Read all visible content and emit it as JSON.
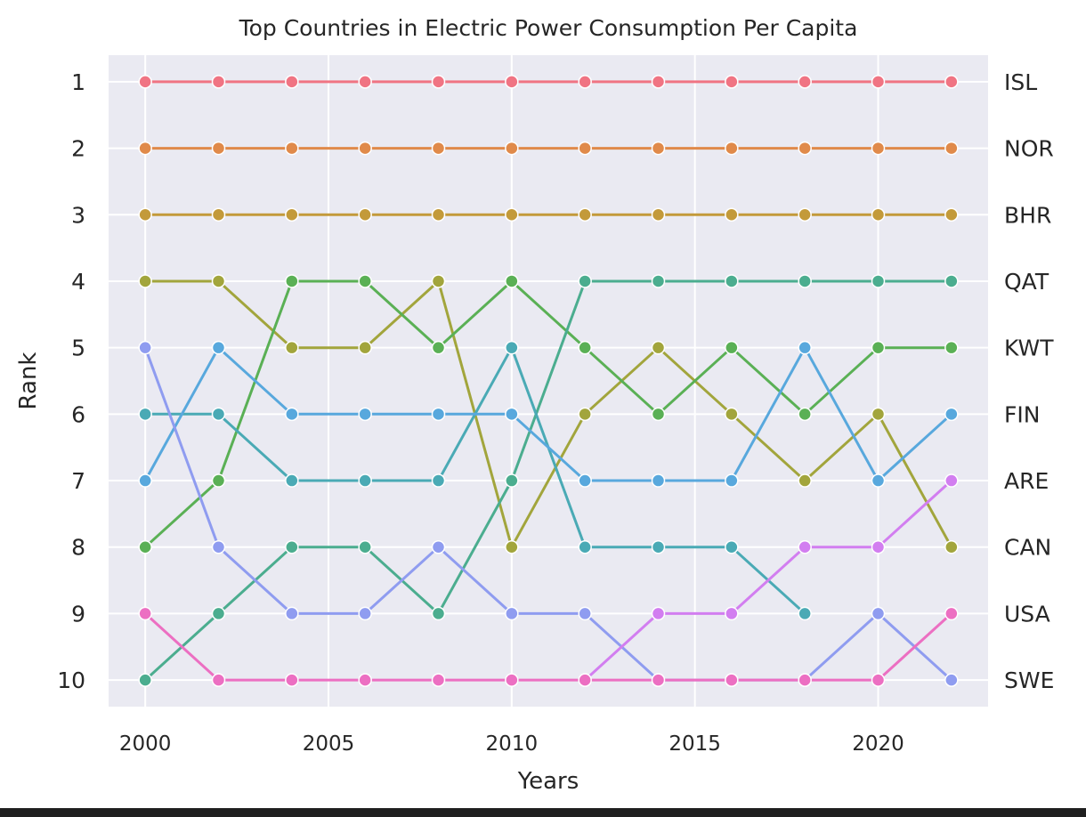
{
  "chart_data": {
    "type": "line",
    "title": "Top Countries in Electric Power Consumption Per Capita",
    "xlabel": "Years",
    "ylabel": "Rank",
    "x": [
      2000,
      2002,
      2004,
      2006,
      2008,
      2010,
      2012,
      2014,
      2016,
      2018,
      2020,
      2022
    ],
    "x_ticks": [
      2000,
      2005,
      2010,
      2015,
      2020
    ],
    "y_ticks": [
      1,
      2,
      3,
      4,
      5,
      6,
      7,
      8,
      9,
      10
    ],
    "y_inverted": true,
    "xlim": [
      1999,
      2023
    ],
    "ylim": [
      10.4,
      0.6
    ],
    "grid": true,
    "right_labels": [
      "ISL",
      "NOR",
      "BHR",
      "QAT",
      "KWT",
      "FIN",
      "ARE",
      "CAN",
      "USA",
      "SWE"
    ],
    "series": [
      {
        "color": "#f07483",
        "values": [
          1,
          1,
          1,
          1,
          1,
          1,
          1,
          1,
          1,
          1,
          1,
          1
        ]
      },
      {
        "color": "#e08a4a",
        "values": [
          2,
          2,
          2,
          2,
          2,
          2,
          2,
          2,
          2,
          2,
          2,
          2
        ]
      },
      {
        "color": "#c39a3a",
        "values": [
          3,
          3,
          3,
          3,
          3,
          3,
          3,
          3,
          3,
          3,
          3,
          3
        ]
      },
      {
        "color": "#a2a53c",
        "values": [
          4,
          4,
          5,
          5,
          4,
          8,
          6,
          5,
          6,
          7,
          6,
          8
        ]
      },
      {
        "color": "#5ab055",
        "values": [
          8,
          7,
          4,
          4,
          5,
          4,
          5,
          6,
          5,
          6,
          5,
          5
        ]
      },
      {
        "color": "#4bad8f",
        "values": [
          10,
          9,
          8,
          8,
          9,
          7,
          4,
          4,
          4,
          4,
          4,
          4
        ]
      },
      {
        "color": "#4aaab5",
        "values": [
          6,
          6,
          7,
          7,
          7,
          5,
          8,
          8,
          8,
          9,
          null,
          null
        ]
      },
      {
        "color": "#58a8dd",
        "values": [
          7,
          5,
          6,
          6,
          6,
          6,
          7,
          7,
          7,
          5,
          7,
          6
        ]
      },
      {
        "color": "#8f9cf0",
        "values": [
          5,
          8,
          9,
          9,
          8,
          9,
          9,
          10,
          10,
          10,
          9,
          10
        ]
      },
      {
        "color": "#d27ef0",
        "values": [
          null,
          null,
          null,
          null,
          null,
          null,
          10,
          9,
          9,
          8,
          8,
          7
        ]
      },
      {
        "color": "#ec6fc2",
        "values": [
          9,
          10,
          10,
          10,
          10,
          10,
          10,
          10,
          10,
          10,
          10,
          9
        ]
      }
    ]
  }
}
